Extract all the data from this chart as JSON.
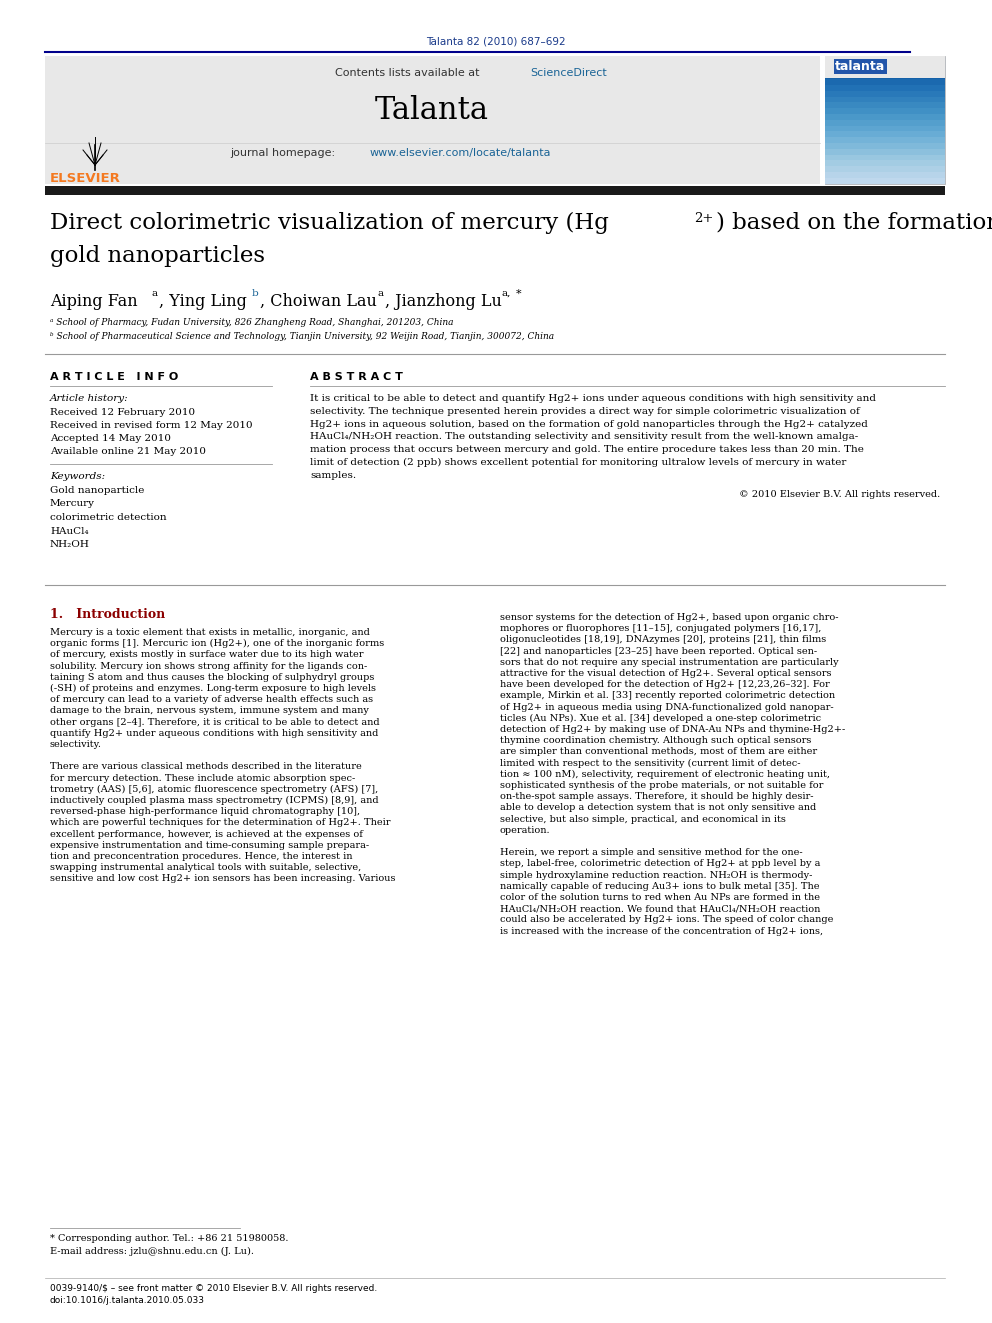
{
  "journal_ref": "Talanta 82 (2010) 687–692",
  "sciencedirect_color": "#1a6496",
  "journal_name": "Talanta",
  "homepage_url_color": "#1a6496",
  "article_info_header": "A R T I C L E   I N F O",
  "abstract_header": "A B S T R A C T",
  "article_history_label": "Article history:",
  "received": "Received 12 February 2010",
  "revised": "Received in revised form 12 May 2010",
  "accepted": "Accepted 14 May 2010",
  "available": "Available online 21 May 2010",
  "keywords_label": "Keywords:",
  "keywords": [
    "Gold nanoparticle",
    "Mercury",
    "colorimetric detection",
    "HAuCl₄",
    "NH₂OH"
  ],
  "copyright": "© 2010 Elsevier B.V. All rights reserved.",
  "intro_header": "1.   Introduction",
  "footnote_star": "* Corresponding author. Tel.: +86 21 51980058.",
  "footnote_email": "E-mail address: jzlu@shnu.edu.cn (J. Lu).",
  "footer_issn": "0039-9140/$ – see front matter © 2010 Elsevier B.V. All rights reserved.",
  "footer_doi": "doi:10.1016/j.talanta.2010.05.033",
  "bg_header_color": "#e8e8e8",
  "elsevier_orange": "#f47920",
  "header_line_color": "#00008b",
  "affil_a": "ᵃ School of Pharmacy, Fudan University, 826 Zhangheng Road, Shanghai, 201203, China",
  "affil_b": "ᵇ School of Pharmaceutical Science and Technology, Tianjin University, 92 Weijin Road, Tianjin, 300072, China",
  "abstract_lines": [
    "It is critical to be able to detect and quantify Hg2+ ions under aqueous conditions with high sensitivity and",
    "selectivity. The technique presented herein provides a direct way for simple colorimetric visualization of",
    "Hg2+ ions in aqueous solution, based on the formation of gold nanoparticles through the Hg2+ catalyzed",
    "HAuCl₄/NH₂OH reaction. The outstanding selectivity and sensitivity result from the well-known amalga-",
    "mation process that occurs between mercury and gold. The entire procedure takes less than 20 min. The",
    "limit of detection (2 ppb) shows excellent potential for monitoring ultralow levels of mercury in water",
    "samples."
  ],
  "intro_col1_lines": [
    "Mercury is a toxic element that exists in metallic, inorganic, and",
    "organic forms [1]. Mercuric ion (Hg2+), one of the inorganic forms",
    "of mercury, exists mostly in surface water due to its high water",
    "solubility. Mercury ion shows strong affinity for the ligands con-",
    "taining S atom and thus causes the blocking of sulphydryl groups",
    "(-SH) of proteins and enzymes. Long-term exposure to high levels",
    "of mercury can lead to a variety of adverse health effects such as",
    "damage to the brain, nervous system, immune system and many",
    "other organs [2–4]. Therefore, it is critical to be able to detect and",
    "quantify Hg2+ under aqueous conditions with high sensitivity and",
    "selectivity.",
    "",
    "There are various classical methods described in the literature",
    "for mercury detection. These include atomic absorption spec-",
    "trometry (AAS) [5,6], atomic fluorescence spectrometry (AFS) [7],",
    "inductively coupled plasma mass spectrometry (ICPMS) [8,9], and",
    "reversed-phase high-performance liquid chromatography [10],",
    "which are powerful techniques for the determination of Hg2+. Their",
    "excellent performance, however, is achieved at the expenses of",
    "expensive instrumentation and time-consuming sample prepara-",
    "tion and preconcentration procedures. Hence, the interest in",
    "swapping instrumental analytical tools with suitable, selective,",
    "sensitive and low cost Hg2+ ion sensors has been increasing. Various"
  ],
  "intro_col2_lines": [
    "sensor systems for the detection of Hg2+, based upon organic chro-",
    "mophores or fluorophores [11–15], conjugated polymers [16,17],",
    "oligonucleotides [18,19], DNAzymes [20], proteins [21], thin films",
    "[22] and nanoparticles [23–25] have been reported. Optical sen-",
    "sors that do not require any special instrumentation are particularly",
    "attractive for the visual detection of Hg2+. Several optical sensors",
    "have been developed for the detection of Hg2+ [12,23,26–32]. For",
    "example, Mirkin et al. [33] recently reported colorimetric detection",
    "of Hg2+ in aqueous media using DNA-functionalized gold nanopar-",
    "ticles (Au NPs). Xue et al. [34] developed a one-step colorimetric",
    "detection of Hg2+ by making use of DNA-Au NPs and thymine-Hg2+-",
    "thymine coordination chemistry. Although such optical sensors",
    "are simpler than conventional methods, most of them are either",
    "limited with respect to the sensitivity (current limit of detec-",
    "tion ≈ 100 nM), selectivity, requirement of electronic heating unit,",
    "sophisticated synthesis of the probe materials, or not suitable for",
    "on-the-spot sample assays. Therefore, it should be highly desir-",
    "able to develop a detection system that is not only sensitive and",
    "selective, but also simple, practical, and economical in its",
    "operation.",
    "",
    "Herein, we report a simple and sensitive method for the one-",
    "step, label-free, colorimetric detection of Hg2+ at ppb level by a",
    "simple hydroxylamine reduction reaction. NH₂OH is thermody-",
    "namically capable of reducing Au3+ ions to bulk metal [35]. The",
    "color of the solution turns to red when Au NPs are formed in the",
    "HAuCl₄/NH₂OH reaction. We found that HAuCl₄/NH₂OH reaction",
    "could also be accelerated by Hg2+ ions. The speed of color change",
    "is increased with the increase of the concentration of Hg2+ ions,"
  ]
}
